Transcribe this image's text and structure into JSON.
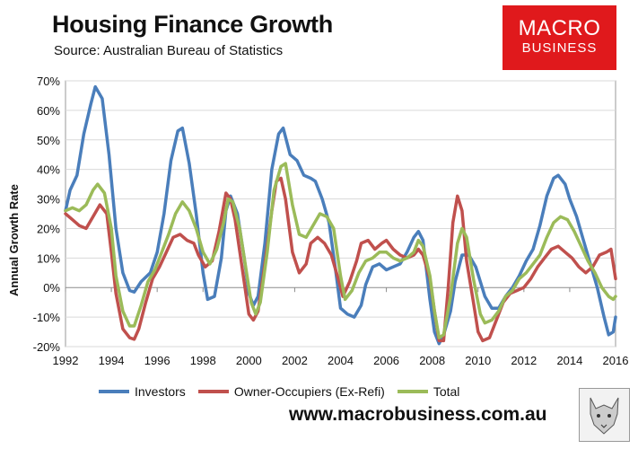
{
  "header": {
    "title": "Housing Finance Growth",
    "source": "Source: Australian Bureau of Statistics"
  },
  "logo": {
    "line1": "MACRO",
    "line2": "BUSINESS",
    "color": "#e0191c"
  },
  "footer": {
    "url": "www.macrobusiness.com.au"
  },
  "chart_data": {
    "type": "line",
    "title": "Housing Finance Growth",
    "ylabel": "Annual Growth Rate",
    "xlabel": "",
    "xlim": [
      1992,
      2016
    ],
    "ylim": [
      -20,
      70
    ],
    "x_ticks": [
      "1992",
      "1994",
      "1996",
      "1998",
      "2000",
      "2002",
      "2004",
      "2006",
      "2008",
      "2010",
      "2012",
      "2014",
      "2016"
    ],
    "y_ticks": [
      "70%",
      "60%",
      "50%",
      "40%",
      "30%",
      "20%",
      "10%",
      "0%",
      "-10%",
      "-20%"
    ],
    "grid": "horizontal",
    "legend_position": "bottom",
    "series": [
      {
        "name": "Investors",
        "color": "#4a7ebb",
        "points": [
          [
            1992,
            26
          ],
          [
            1992.2,
            33
          ],
          [
            1992.5,
            38
          ],
          [
            1992.8,
            52
          ],
          [
            1993.1,
            62
          ],
          [
            1993.3,
            68
          ],
          [
            1993.6,
            64
          ],
          [
            1993.9,
            45
          ],
          [
            1994.2,
            20
          ],
          [
            1994.5,
            5
          ],
          [
            1994.8,
            -1
          ],
          [
            1995,
            -1.5
          ],
          [
            1995.3,
            2
          ],
          [
            1995.7,
            5
          ],
          [
            1996,
            12
          ],
          [
            1996.3,
            25
          ],
          [
            1996.6,
            43
          ],
          [
            1996.9,
            53
          ],
          [
            1997.1,
            54
          ],
          [
            1997.4,
            42
          ],
          [
            1997.7,
            25
          ],
          [
            1998,
            5
          ],
          [
            1998.2,
            -4
          ],
          [
            1998.5,
            -3
          ],
          [
            1998.8,
            10
          ],
          [
            1999,
            26
          ],
          [
            1999.2,
            31
          ],
          [
            1999.5,
            25
          ],
          [
            1999.8,
            10
          ],
          [
            2000,
            -2
          ],
          [
            2000.2,
            -6
          ],
          [
            2000.4,
            -3
          ],
          [
            2000.7,
            15
          ],
          [
            2001,
            40
          ],
          [
            2001.3,
            52
          ],
          [
            2001.5,
            54
          ],
          [
            2001.8,
            45
          ],
          [
            2002.1,
            43
          ],
          [
            2002.4,
            38
          ],
          [
            2002.7,
            37
          ],
          [
            2002.9,
            36
          ],
          [
            2003.2,
            30
          ],
          [
            2003.5,
            22
          ],
          [
            2003.8,
            5
          ],
          [
            2004,
            -7
          ],
          [
            2004.3,
            -9
          ],
          [
            2004.6,
            -10
          ],
          [
            2004.9,
            -6
          ],
          [
            2005.1,
            1
          ],
          [
            2005.4,
            7
          ],
          [
            2005.7,
            8
          ],
          [
            2006,
            6
          ],
          [
            2006.3,
            7
          ],
          [
            2006.6,
            8
          ],
          [
            2006.9,
            12
          ],
          [
            2007.2,
            17
          ],
          [
            2007.4,
            19
          ],
          [
            2007.6,
            16
          ],
          [
            2007.9,
            -4
          ],
          [
            2008.1,
            -15
          ],
          [
            2008.3,
            -19
          ],
          [
            2008.5,
            -16
          ],
          [
            2008.8,
            -8
          ],
          [
            2009,
            2
          ],
          [
            2009.3,
            11
          ],
          [
            2009.6,
            11
          ],
          [
            2009.9,
            7
          ],
          [
            2010.1,
            2
          ],
          [
            2010.3,
            -3
          ],
          [
            2010.6,
            -7
          ],
          [
            2010.9,
            -7
          ],
          [
            2011.2,
            -3
          ],
          [
            2011.5,
            0
          ],
          [
            2011.8,
            4
          ],
          [
            2012.1,
            9
          ],
          [
            2012.4,
            13
          ],
          [
            2012.7,
            21
          ],
          [
            2013,
            31
          ],
          [
            2013.3,
            37
          ],
          [
            2013.5,
            38
          ],
          [
            2013.8,
            35
          ],
          [
            2014,
            30
          ],
          [
            2014.3,
            24
          ],
          [
            2014.6,
            16
          ],
          [
            2014.9,
            8
          ],
          [
            2015.2,
            0
          ],
          [
            2015.5,
            -10
          ],
          [
            2015.7,
            -16
          ],
          [
            2015.9,
            -15
          ],
          [
            2016,
            -10
          ]
        ]
      },
      {
        "name": "Owner-Occupiers (Ex-Refi)",
        "color": "#c0504d",
        "points": [
          [
            1992,
            25
          ],
          [
            1992.3,
            23
          ],
          [
            1992.6,
            21
          ],
          [
            1992.9,
            20
          ],
          [
            1993.2,
            24
          ],
          [
            1993.5,
            28
          ],
          [
            1993.8,
            25
          ],
          [
            1994,
            12
          ],
          [
            1994.2,
            -2
          ],
          [
            1994.5,
            -14
          ],
          [
            1994.8,
            -17
          ],
          [
            1995,
            -17.5
          ],
          [
            1995.2,
            -14
          ],
          [
            1995.5,
            -5
          ],
          [
            1995.8,
            3
          ],
          [
            1996.1,
            7
          ],
          [
            1996.4,
            12
          ],
          [
            1996.7,
            17
          ],
          [
            1997,
            18
          ],
          [
            1997.3,
            16
          ],
          [
            1997.6,
            15
          ],
          [
            1997.8,
            11
          ],
          [
            1998.1,
            7
          ],
          [
            1998.4,
            9
          ],
          [
            1998.7,
            19
          ],
          [
            1999,
            32
          ],
          [
            1999.2,
            30
          ],
          [
            1999.4,
            23
          ],
          [
            1999.7,
            7
          ],
          [
            2000,
            -9
          ],
          [
            2000.2,
            -11
          ],
          [
            2000.4,
            -8
          ],
          [
            2000.7,
            8
          ],
          [
            2001,
            26
          ],
          [
            2001.2,
            36
          ],
          [
            2001.4,
            37
          ],
          [
            2001.6,
            30
          ],
          [
            2001.9,
            12
          ],
          [
            2002.2,
            5
          ],
          [
            2002.5,
            8
          ],
          [
            2002.7,
            15
          ],
          [
            2003,
            17
          ],
          [
            2003.3,
            15
          ],
          [
            2003.6,
            11
          ],
          [
            2003.9,
            3
          ],
          [
            2004.1,
            -3
          ],
          [
            2004.4,
            2
          ],
          [
            2004.7,
            9
          ],
          [
            2004.9,
            15
          ],
          [
            2005.2,
            16
          ],
          [
            2005.5,
            13
          ],
          [
            2005.8,
            15
          ],
          [
            2006,
            16
          ],
          [
            2006.3,
            13
          ],
          [
            2006.6,
            11
          ],
          [
            2006.9,
            10
          ],
          [
            2007.2,
            11
          ],
          [
            2007.4,
            13
          ],
          [
            2007.6,
            11
          ],
          [
            2007.9,
            3
          ],
          [
            2008.1,
            -8
          ],
          [
            2008.3,
            -18
          ],
          [
            2008.5,
            -18
          ],
          [
            2008.7,
            0
          ],
          [
            2008.9,
            22
          ],
          [
            2009.1,
            31
          ],
          [
            2009.3,
            26
          ],
          [
            2009.5,
            9
          ],
          [
            2009.8,
            -5
          ],
          [
            2010,
            -15
          ],
          [
            2010.2,
            -18
          ],
          [
            2010.5,
            -17
          ],
          [
            2010.8,
            -11
          ],
          [
            2011.1,
            -5
          ],
          [
            2011.4,
            -2
          ],
          [
            2011.7,
            -1
          ],
          [
            2012,
            0
          ],
          [
            2012.3,
            3
          ],
          [
            2012.6,
            7
          ],
          [
            2012.9,
            10
          ],
          [
            2013.2,
            13
          ],
          [
            2013.5,
            14
          ],
          [
            2013.8,
            12
          ],
          [
            2014.1,
            10
          ],
          [
            2014.4,
            7
          ],
          [
            2014.7,
            5
          ],
          [
            2015,
            7
          ],
          [
            2015.3,
            11
          ],
          [
            2015.6,
            12
          ],
          [
            2015.8,
            13
          ],
          [
            2016,
            3
          ]
        ]
      },
      {
        "name": "Total",
        "color": "#9bbb59",
        "points": [
          [
            1992,
            26
          ],
          [
            1992.3,
            27
          ],
          [
            1992.6,
            26
          ],
          [
            1992.9,
            28
          ],
          [
            1993.2,
            33
          ],
          [
            1993.4,
            35
          ],
          [
            1993.7,
            32
          ],
          [
            1994,
            20
          ],
          [
            1994.2,
            4
          ],
          [
            1994.5,
            -8
          ],
          [
            1994.8,
            -13
          ],
          [
            1995,
            -13
          ],
          [
            1995.3,
            -6
          ],
          [
            1995.6,
            2
          ],
          [
            1995.9,
            6
          ],
          [
            1996.2,
            12
          ],
          [
            1996.5,
            18
          ],
          [
            1996.8,
            25
          ],
          [
            1997.1,
            29
          ],
          [
            1997.4,
            26
          ],
          [
            1997.7,
            20
          ],
          [
            1998,
            12
          ],
          [
            1998.3,
            8
          ],
          [
            1998.6,
            13
          ],
          [
            1998.9,
            22
          ],
          [
            1999.1,
            30
          ],
          [
            1999.3,
            29
          ],
          [
            1999.6,
            20
          ],
          [
            1999.9,
            5
          ],
          [
            2000.1,
            -5
          ],
          [
            2000.3,
            -9
          ],
          [
            2000.5,
            -5
          ],
          [
            2000.8,
            12
          ],
          [
            2001.1,
            33
          ],
          [
            2001.4,
            41
          ],
          [
            2001.6,
            42
          ],
          [
            2001.9,
            28
          ],
          [
            2002.2,
            18
          ],
          [
            2002.5,
            17
          ],
          [
            2002.8,
            21
          ],
          [
            2003.1,
            25
          ],
          [
            2003.4,
            24
          ],
          [
            2003.7,
            20
          ],
          [
            2004,
            4
          ],
          [
            2004.2,
            -4
          ],
          [
            2004.5,
            -1
          ],
          [
            2004.8,
            5
          ],
          [
            2005.1,
            9
          ],
          [
            2005.4,
            10
          ],
          [
            2005.7,
            12
          ],
          [
            2006,
            12
          ],
          [
            2006.3,
            10
          ],
          [
            2006.6,
            9
          ],
          [
            2006.9,
            10
          ],
          [
            2007.2,
            12
          ],
          [
            2007.4,
            16
          ],
          [
            2007.6,
            14
          ],
          [
            2007.9,
            4
          ],
          [
            2008.1,
            -8
          ],
          [
            2008.3,
            -17
          ],
          [
            2008.5,
            -16
          ],
          [
            2008.8,
            -3
          ],
          [
            2009.1,
            15
          ],
          [
            2009.3,
            20
          ],
          [
            2009.5,
            17
          ],
          [
            2009.8,
            3
          ],
          [
            2010.1,
            -9
          ],
          [
            2010.3,
            -12
          ],
          [
            2010.6,
            -11
          ],
          [
            2010.9,
            -8
          ],
          [
            2011.2,
            -3
          ],
          [
            2011.5,
            -1
          ],
          [
            2011.8,
            3
          ],
          [
            2012.1,
            5
          ],
          [
            2012.4,
            8
          ],
          [
            2012.7,
            11
          ],
          [
            2013,
            17
          ],
          [
            2013.3,
            22
          ],
          [
            2013.6,
            24
          ],
          [
            2013.9,
            23
          ],
          [
            2014.2,
            19
          ],
          [
            2014.5,
            14
          ],
          [
            2014.8,
            9
          ],
          [
            2015.1,
            5
          ],
          [
            2015.4,
            0
          ],
          [
            2015.7,
            -3
          ],
          [
            2015.9,
            -4
          ],
          [
            2016,
            -3
          ]
        ]
      }
    ]
  }
}
